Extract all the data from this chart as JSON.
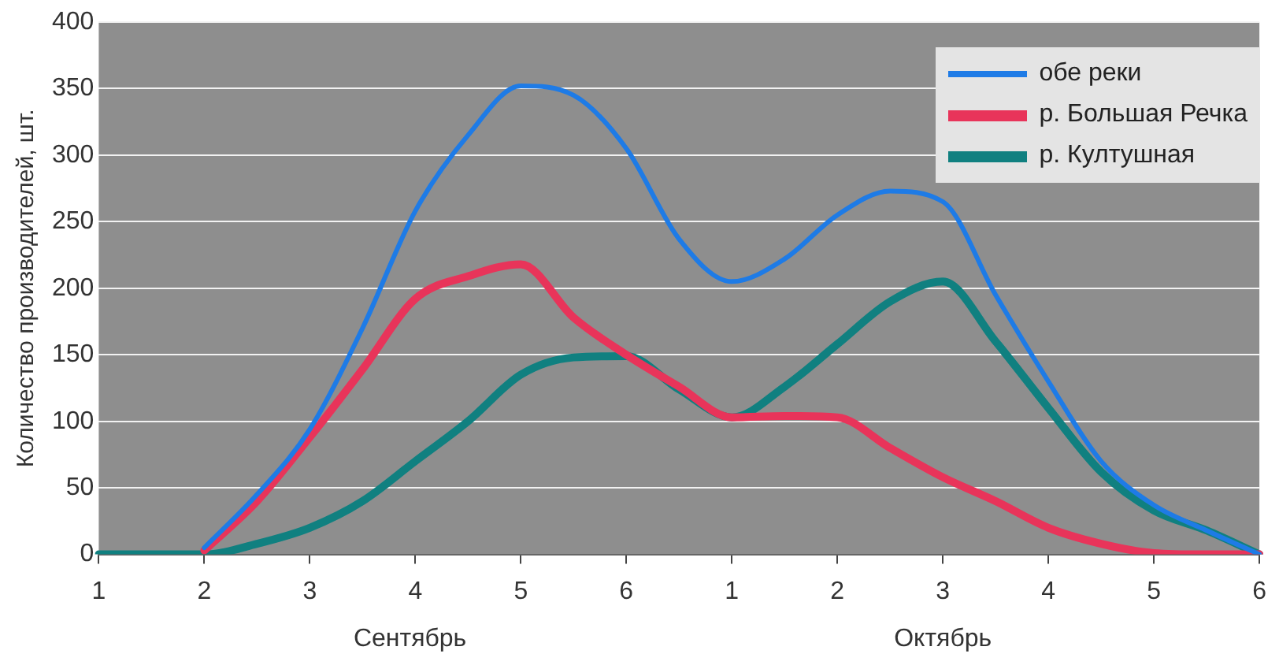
{
  "chart_data": {
    "type": "line",
    "ylabel": "Количество производителей, шт.",
    "categories": [
      "1",
      null,
      "2",
      null,
      "3",
      null,
      "4",
      null,
      "5",
      null,
      "6",
      null,
      "1",
      null,
      "2",
      null,
      "3",
      null,
      "4",
      null,
      "5",
      null,
      "6"
    ],
    "ylim": [
      0,
      400
    ],
    "yticks": [
      0,
      50,
      100,
      150,
      200,
      250,
      300,
      350,
      400
    ],
    "grid": "y",
    "legend": "top right",
    "line_style": "solid",
    "annotations": [
      "Сентябрь",
      "Октябрь"
    ],
    "series": [
      {
        "name": "обе реки",
        "color": "#1e7be6",
        "values": [
          null,
          null,
          5,
          45,
          94,
          170,
          258,
          315,
          352,
          345,
          305,
          237,
          205,
          222,
          255,
          273,
          265,
          195,
          130,
          70,
          37,
          18,
          0
        ]
      },
      {
        "name": "р. Большая Речка",
        "color": "#e8345a",
        "values": [
          null,
          null,
          3,
          40,
          88,
          139,
          192,
          209,
          218,
          178,
          150,
          126,
          103,
          104,
          103,
          80,
          58,
          40,
          20,
          8,
          1,
          0,
          0
        ]
      },
      {
        "name": "р. Култушная",
        "color": "#108080",
        "values": [
          0,
          0,
          0,
          8,
          20,
          40,
          70,
          100,
          135,
          148,
          149,
          124,
          103,
          126,
          158,
          190,
          205,
          160,
          110,
          62,
          33,
          18,
          0
        ]
      }
    ]
  }
}
